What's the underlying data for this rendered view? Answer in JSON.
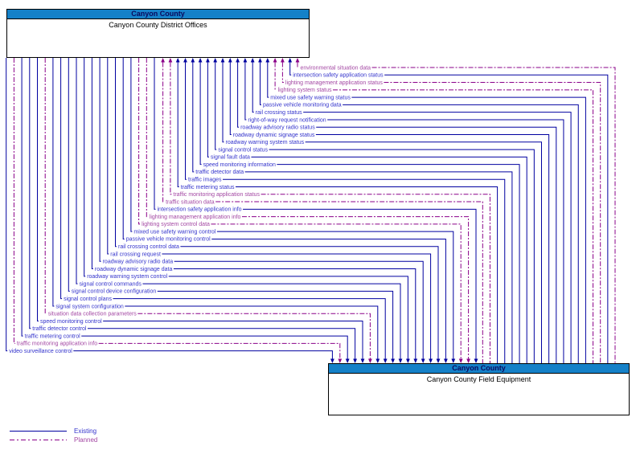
{
  "diagram": {
    "top_box": {
      "header": "Canyon County",
      "title": "Canyon County District Offices"
    },
    "bottom_box": {
      "header": "Canyon County",
      "title": "Canyon County Field Equipment"
    },
    "legend": [
      {
        "label": "Existing",
        "status": "existing"
      },
      {
        "label": "Planned",
        "status": "planned"
      }
    ],
    "colors": {
      "existing_line": "#0000A0",
      "planned_line": "#8A0089",
      "existing_text": "#3333CC",
      "planned_text": "#A347A3",
      "header_fill": "#1581C8",
      "header_text": "#0A0A5E"
    },
    "flows": [
      {
        "label": "environmental situation data",
        "status": "planned",
        "direction": "to_district"
      },
      {
        "label": "intersection safety application status",
        "status": "existing",
        "direction": "to_district"
      },
      {
        "label": "lighting management application status",
        "status": "planned",
        "direction": "to_district"
      },
      {
        "label": "lighting system status",
        "status": "planned",
        "direction": "to_district"
      },
      {
        "label": "mixed use safety warning status",
        "status": "existing",
        "direction": "to_district"
      },
      {
        "label": "passive vehicle monitoring data",
        "status": "existing",
        "direction": "to_district"
      },
      {
        "label": "rail crossing status",
        "status": "existing",
        "direction": "to_district"
      },
      {
        "label": "right-of-way request notification",
        "status": "existing",
        "direction": "to_district"
      },
      {
        "label": "roadway advisory radio status",
        "status": "existing",
        "direction": "to_district"
      },
      {
        "label": "roadway dynamic signage status",
        "status": "existing",
        "direction": "to_district"
      },
      {
        "label": "roadway warning system status",
        "status": "existing",
        "direction": "to_district"
      },
      {
        "label": "signal control status",
        "status": "existing",
        "direction": "to_district"
      },
      {
        "label": "signal fault data",
        "status": "existing",
        "direction": "to_district"
      },
      {
        "label": "speed monitoring information",
        "status": "existing",
        "direction": "to_district"
      },
      {
        "label": "traffic detector data",
        "status": "existing",
        "direction": "to_district"
      },
      {
        "label": "traffic images",
        "status": "existing",
        "direction": "to_district"
      },
      {
        "label": "traffic metering status",
        "status": "existing",
        "direction": "to_district"
      },
      {
        "label": "traffic monitoring application status",
        "status": "planned",
        "direction": "to_district"
      },
      {
        "label": "traffic situation data",
        "status": "planned",
        "direction": "to_district"
      },
      {
        "label": "intersection safety application info",
        "status": "existing",
        "direction": "to_field"
      },
      {
        "label": "lighting management application info",
        "status": "planned",
        "direction": "to_field"
      },
      {
        "label": "lighting system control data",
        "status": "planned",
        "direction": "to_field"
      },
      {
        "label": "mixed use safety warning control",
        "status": "existing",
        "direction": "to_field"
      },
      {
        "label": "passive vehicle monitoring control",
        "status": "existing",
        "direction": "to_field"
      },
      {
        "label": "rail crossing control data",
        "status": "existing",
        "direction": "to_field"
      },
      {
        "label": "rail crossing request",
        "status": "existing",
        "direction": "to_field"
      },
      {
        "label": "roadway advisory radio data",
        "status": "existing",
        "direction": "to_field"
      },
      {
        "label": "roadway dynamic signage data",
        "status": "existing",
        "direction": "to_field"
      },
      {
        "label": "roadway warning system control",
        "status": "existing",
        "direction": "to_field"
      },
      {
        "label": "signal control commands",
        "status": "existing",
        "direction": "to_field"
      },
      {
        "label": "signal control device configuration",
        "status": "existing",
        "direction": "to_field"
      },
      {
        "label": "signal control plans",
        "status": "existing",
        "direction": "to_field"
      },
      {
        "label": "signal system configuration",
        "status": "existing",
        "direction": "to_field"
      },
      {
        "label": "situation data collection parameters",
        "status": "planned",
        "direction": "to_field"
      },
      {
        "label": "speed monitoring control",
        "status": "existing",
        "direction": "to_field"
      },
      {
        "label": "traffic detector control",
        "status": "existing",
        "direction": "to_field"
      },
      {
        "label": "traffic metering control",
        "status": "existing",
        "direction": "to_field"
      },
      {
        "label": "traffic monitoring application info",
        "status": "planned",
        "direction": "to_field"
      },
      {
        "label": "video surveillance control",
        "status": "existing",
        "direction": "to_field"
      }
    ]
  }
}
